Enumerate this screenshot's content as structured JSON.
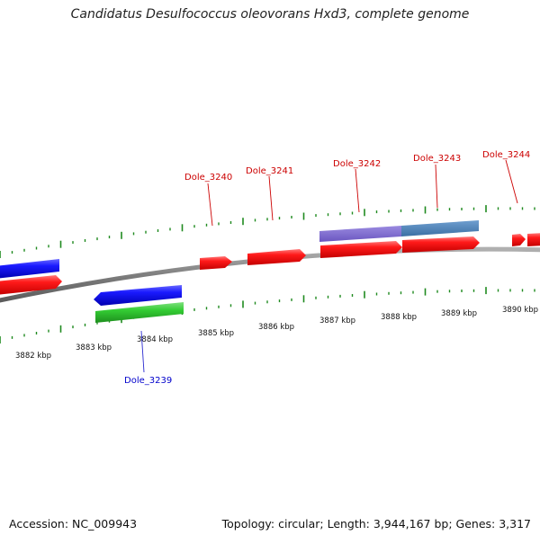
{
  "title": "Candidatus Desulfococcus oleovorans Hxd3, complete genome",
  "footer": {
    "accession": "Accession: NC_009943",
    "summary": "Topology: circular; Length: 3,944,167 bp; Genes: 3,317"
  },
  "colors": {
    "forward_gene": "#ff1a1a",
    "reverse_gene": "#1a1aff",
    "rna_gene": "#33cc33",
    "operon_purple": "#7b68cc",
    "operon_steel": "#4a7fb5",
    "backbone": "#8a8a8a",
    "tick": "#1f8a1f",
    "forward_label": "#cc0000",
    "reverse_label": "#0000cc"
  },
  "scale": {
    "unit": "kbp",
    "labels": [
      "3882 kbp",
      "3883 kbp",
      "3884 kbp",
      "3885 kbp",
      "3886 kbp",
      "3887 kbp",
      "3888 kbp",
      "3889 kbp",
      "3890 kbp"
    ]
  },
  "genes": [
    {
      "id": "Dole_3239",
      "strand": "reverse",
      "labeled": true
    },
    {
      "id": "Dole_3240",
      "strand": "forward",
      "labeled": true
    },
    {
      "id": "Dole_3241",
      "strand": "forward",
      "labeled": true
    },
    {
      "id": "Dole_3242",
      "strand": "forward",
      "labeled": true
    },
    {
      "id": "Dole_3243",
      "strand": "forward",
      "labeled": true
    },
    {
      "id": "Dole_3244",
      "strand": "forward",
      "labeled": true
    }
  ]
}
